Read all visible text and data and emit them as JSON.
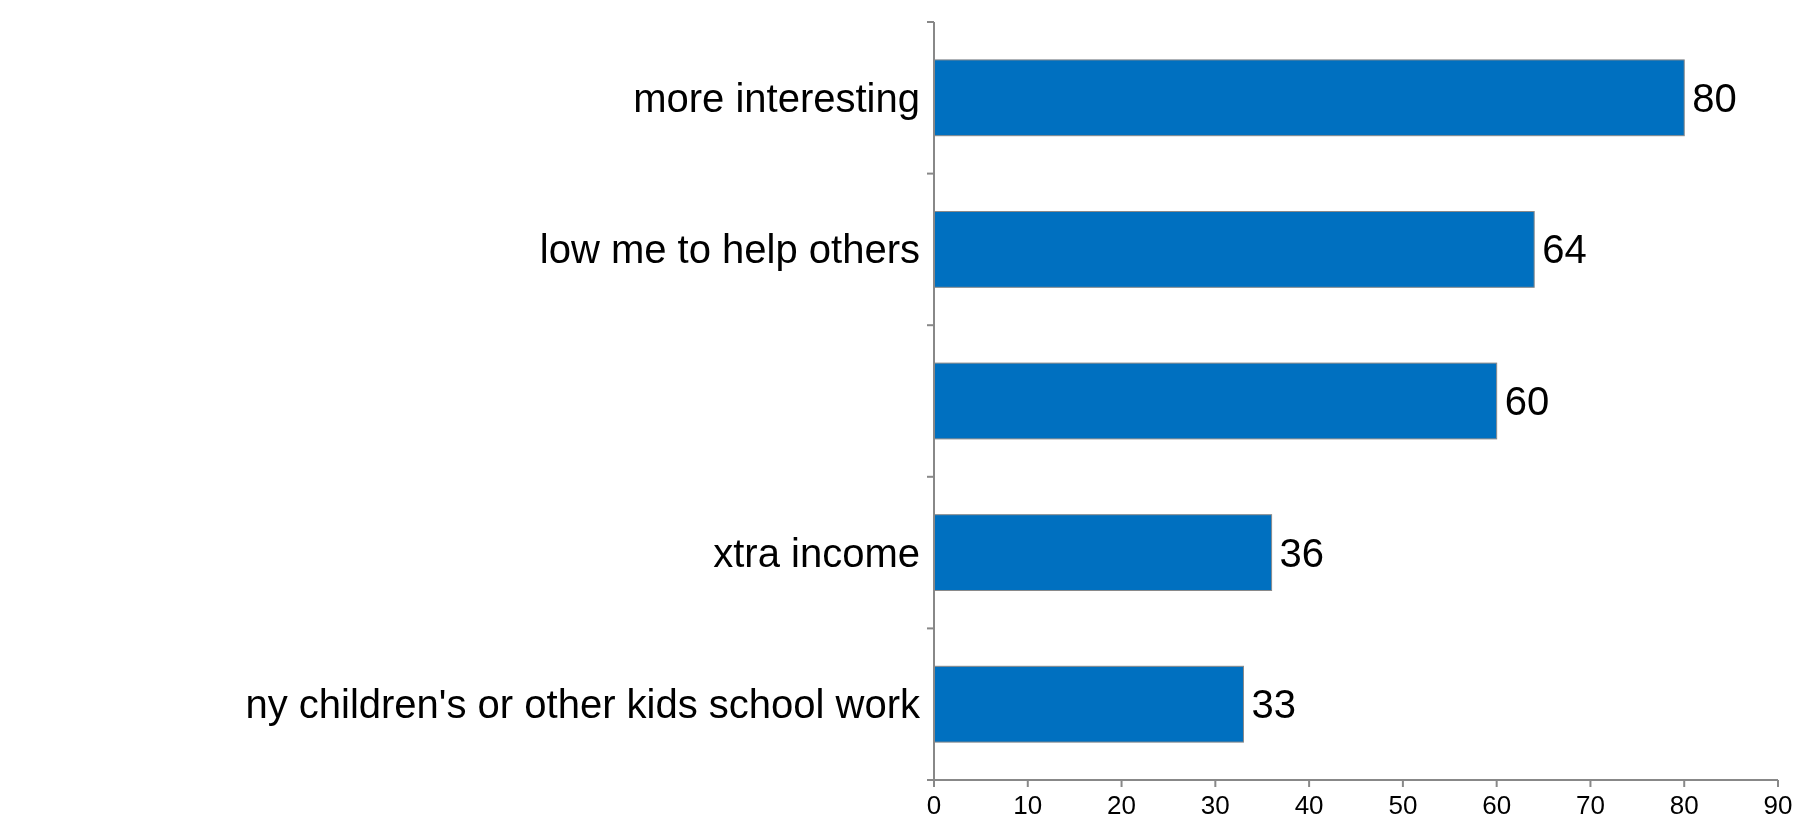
{
  "chart_data": {
    "type": "bar",
    "orientation": "horizontal",
    "categories": [
      " more interesting",
      "low me to help others",
      null,
      "xtra income",
      "ny children's or other kids school work"
    ],
    "values": [
      80,
      64,
      60,
      36,
      33
    ],
    "color": "#0070c0",
    "xlim": [
      0,
      90
    ],
    "xticks": [
      0,
      10,
      20,
      30,
      40,
      50,
      60,
      70,
      80,
      90
    ],
    "data_labels": true
  }
}
